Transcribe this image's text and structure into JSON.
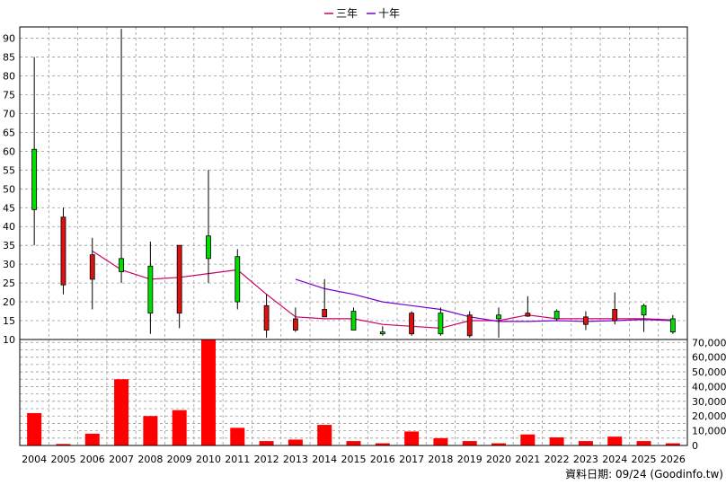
{
  "credit": "資料日期: 09/24 (Goodinfo.tw)",
  "colors": {
    "ma3": "#cc0066",
    "ma10": "#7700cc",
    "up": "#00dd00",
    "down": "#dd1111",
    "volume": "#ff0000",
    "grid": "#999999"
  },
  "chart_data": [
    {
      "type": "candlestick",
      "categories": [
        "2004",
        "2005",
        "2006",
        "2007",
        "2008",
        "2009",
        "2010",
        "2011",
        "2012",
        "2013",
        "2014",
        "2015",
        "2016",
        "2017",
        "2018",
        "2019",
        "2020",
        "2021",
        "2022",
        "2023",
        "2024",
        "2025",
        "2026"
      ],
      "ylim": [
        10,
        93
      ],
      "yticks": [
        10,
        15,
        20,
        25,
        30,
        35,
        40,
        45,
        50,
        55,
        60,
        65,
        70,
        75,
        80,
        85,
        90
      ],
      "grid": true,
      "legend_position": "top-center",
      "candles": [
        {
          "open": 44.5,
          "close": 60.5,
          "high": 85,
          "low": 35
        },
        {
          "open": 42.5,
          "close": 24.5,
          "high": 45,
          "low": 22
        },
        {
          "open": 32.5,
          "close": 26,
          "high": 37,
          "low": 18
        },
        {
          "open": 28,
          "close": 31.5,
          "high": 92.5,
          "low": 25
        },
        {
          "open": 17,
          "close": 29.5,
          "high": 36,
          "low": 11.5
        },
        {
          "open": 35,
          "close": 17,
          "high": 35,
          "low": 13
        },
        {
          "open": 31.5,
          "close": 37.5,
          "high": 55,
          "low": 25
        },
        {
          "open": 20,
          "close": 32,
          "high": 34,
          "low": 18
        },
        {
          "open": 19,
          "close": 12.5,
          "high": 22,
          "low": 10.5
        },
        {
          "open": 15.5,
          "close": 12.5,
          "high": 18.5,
          "low": 12
        },
        {
          "open": 18,
          "close": 16,
          "high": 26,
          "low": 16
        },
        {
          "open": 12.5,
          "close": 17.5,
          "high": 18.5,
          "low": 12.5
        },
        {
          "open": 11.5,
          "close": 12,
          "high": 13.5,
          "low": 11
        },
        {
          "open": 17,
          "close": 11.5,
          "high": 17.5,
          "low": 11
        },
        {
          "open": 11.5,
          "close": 17,
          "high": 18.5,
          "low": 11
        },
        {
          "open": 16.5,
          "close": 11,
          "high": 17.5,
          "low": 10.5
        },
        {
          "open": 15.5,
          "close": 16.5,
          "high": 18.5,
          "low": 10.5
        },
        {
          "open": 17,
          "close": 16.2,
          "high": 21.5,
          "low": 16
        },
        {
          "open": 15.5,
          "close": 17.5,
          "high": 18,
          "low": 15
        },
        {
          "open": 16,
          "close": 14,
          "high": 17.5,
          "low": 12.5
        },
        {
          "open": 18,
          "close": 15,
          "high": 22.5,
          "low": 14
        },
        {
          "open": 16.5,
          "close": 19,
          "high": 19.5,
          "low": 12
        },
        {
          "open": 12,
          "close": 15.5,
          "high": 16.5,
          "low": 11.5
        }
      ],
      "series": [
        {
          "name": "三年",
          "values": [
            null,
            null,
            33.5,
            28.5,
            26,
            26.5,
            27.5,
            28.5,
            22,
            16,
            15.5,
            15.5,
            14,
            13.5,
            13,
            15,
            15,
            16.5,
            15.5,
            15.5,
            15.5,
            15.5,
            15.2
          ]
        },
        {
          "name": "十年",
          "values": [
            null,
            null,
            null,
            null,
            null,
            null,
            null,
            null,
            null,
            26,
            23.5,
            22,
            20,
            19,
            18,
            16,
            14.8,
            14.8,
            15,
            14.8,
            15,
            15.3,
            15
          ]
        }
      ]
    },
    {
      "type": "bar",
      "categories": [
        "2004",
        "2005",
        "2006",
        "2007",
        "2008",
        "2009",
        "2010",
        "2011",
        "2012",
        "2013",
        "2014",
        "2015",
        "2016",
        "2017",
        "2018",
        "2019",
        "2020",
        "2021",
        "2022",
        "2023",
        "2024",
        "2025",
        "2026"
      ],
      "values": [
        22000,
        1000,
        8000,
        45000,
        20000,
        24000,
        72000,
        12000,
        3000,
        4000,
        14000,
        3000,
        1500,
        9500,
        5000,
        3000,
        1500,
        7500,
        5500,
        3000,
        6000,
        3000,
        1500
      ],
      "ylim": [
        0,
        72000
      ],
      "yticks": [
        0,
        10000,
        20000,
        30000,
        40000,
        50000,
        60000,
        70000
      ],
      "ytick_labels": [
        "0",
        "10,000",
        "20,000",
        "30,000",
        "40,000",
        "50,000",
        "60,000",
        "70,000"
      ],
      "grid": true
    }
  ]
}
